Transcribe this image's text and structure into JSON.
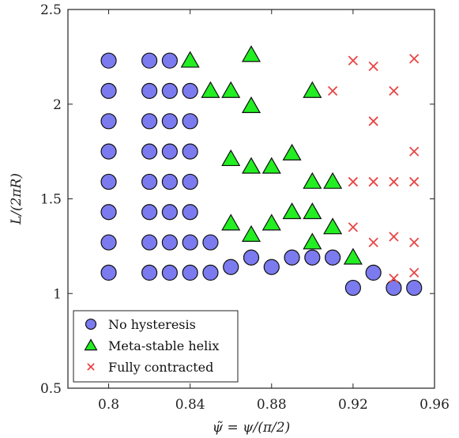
{
  "chart_data": {
    "type": "scatter",
    "title": "",
    "xlabel": "ψ̃ = ψ/(π/2)",
    "ylabel": "L/(2πR)",
    "xlim": [
      0.78,
      0.96
    ],
    "ylim": [
      0.5,
      2.5
    ],
    "xticks": [
      0.8,
      0.84,
      0.88,
      0.92,
      0.96
    ],
    "xtick_labels": [
      "0.8",
      "0.84",
      "0.88",
      "0.92",
      "0.96"
    ],
    "yticks": [
      0.5,
      1,
      1.5,
      2,
      2.5
    ],
    "ytick_labels": [
      "0.5",
      "1",
      "1.5",
      "2",
      "2.5"
    ],
    "grid": false,
    "legend_position": "bottom-left",
    "series": [
      {
        "name": "No hysteresis",
        "marker": "circle",
        "color": "#7b7bef",
        "points": [
          [
            0.8,
            2.23
          ],
          [
            0.8,
            2.07
          ],
          [
            0.8,
            1.91
          ],
          [
            0.8,
            1.75
          ],
          [
            0.8,
            1.59
          ],
          [
            0.8,
            1.43
          ],
          [
            0.8,
            1.27
          ],
          [
            0.8,
            1.11
          ],
          [
            0.82,
            2.23
          ],
          [
            0.82,
            2.07
          ],
          [
            0.82,
            1.91
          ],
          [
            0.82,
            1.75
          ],
          [
            0.82,
            1.59
          ],
          [
            0.82,
            1.43
          ],
          [
            0.82,
            1.27
          ],
          [
            0.82,
            1.11
          ],
          [
            0.83,
            2.23
          ],
          [
            0.83,
            2.07
          ],
          [
            0.83,
            1.91
          ],
          [
            0.83,
            1.75
          ],
          [
            0.83,
            1.59
          ],
          [
            0.83,
            1.43
          ],
          [
            0.83,
            1.27
          ],
          [
            0.83,
            1.11
          ],
          [
            0.84,
            2.07
          ],
          [
            0.84,
            1.91
          ],
          [
            0.84,
            1.75
          ],
          [
            0.84,
            1.59
          ],
          [
            0.84,
            1.43
          ],
          [
            0.84,
            1.27
          ],
          [
            0.84,
            1.11
          ],
          [
            0.85,
            1.27
          ],
          [
            0.85,
            1.11
          ],
          [
            0.86,
            1.14
          ],
          [
            0.87,
            1.19
          ],
          [
            0.88,
            1.14
          ],
          [
            0.89,
            1.19
          ],
          [
            0.9,
            1.19
          ],
          [
            0.91,
            1.19
          ],
          [
            0.92,
            1.03
          ],
          [
            0.93,
            1.11
          ],
          [
            0.94,
            1.03
          ],
          [
            0.95,
            1.03
          ]
        ]
      },
      {
        "name": "Meta-stable helix",
        "marker": "triangle",
        "color": "#22ee22",
        "points": [
          [
            0.84,
            2.23
          ],
          [
            0.85,
            2.07
          ],
          [
            0.86,
            2.07
          ],
          [
            0.87,
            2.26
          ],
          [
            0.87,
            1.99
          ],
          [
            0.9,
            2.07
          ],
          [
            0.86,
            1.71
          ],
          [
            0.87,
            1.67
          ],
          [
            0.88,
            1.67
          ],
          [
            0.89,
            1.74
          ],
          [
            0.9,
            1.59
          ],
          [
            0.91,
            1.59
          ],
          [
            0.86,
            1.37
          ],
          [
            0.87,
            1.31
          ],
          [
            0.88,
            1.37
          ],
          [
            0.89,
            1.43
          ],
          [
            0.9,
            1.43
          ],
          [
            0.9,
            1.27
          ],
          [
            0.91,
            1.35
          ],
          [
            0.92,
            1.19
          ]
        ]
      },
      {
        "name": "Fully contracted",
        "marker": "cross",
        "color": "#e84545",
        "points": [
          [
            0.91,
            2.07
          ],
          [
            0.92,
            2.23
          ],
          [
            0.93,
            2.2
          ],
          [
            0.94,
            2.07
          ],
          [
            0.95,
            2.24
          ],
          [
            0.93,
            1.91
          ],
          [
            0.95,
            1.75
          ],
          [
            0.92,
            1.59
          ],
          [
            0.93,
            1.59
          ],
          [
            0.94,
            1.59
          ],
          [
            0.95,
            1.59
          ],
          [
            0.92,
            1.35
          ],
          [
            0.93,
            1.27
          ],
          [
            0.94,
            1.3
          ],
          [
            0.95,
            1.27
          ],
          [
            0.94,
            1.08
          ],
          [
            0.95,
            1.11
          ]
        ]
      }
    ]
  }
}
